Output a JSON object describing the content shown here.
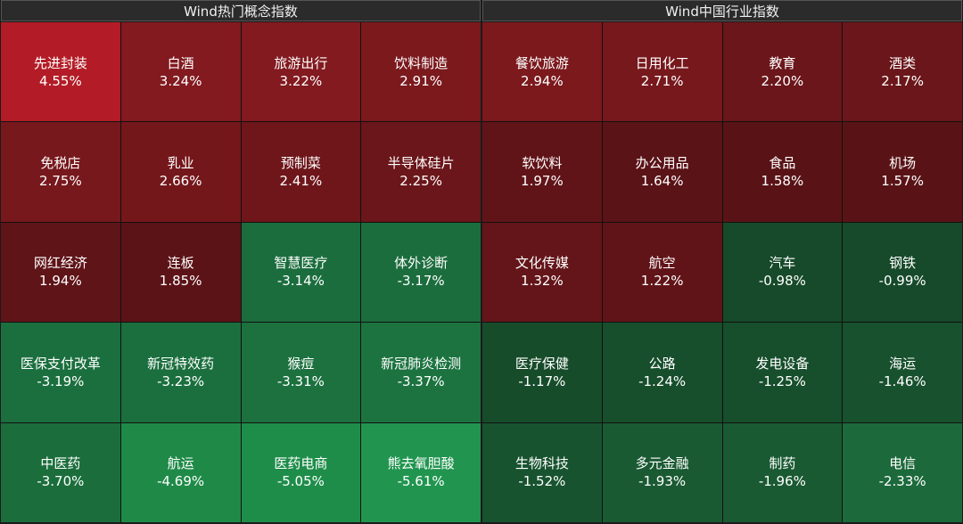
{
  "panels": [
    {
      "title": "Wind热门概念指数",
      "cells": [
        {
          "name": "先进封装",
          "pct": "4.55%",
          "color": "#b31c26"
        },
        {
          "name": "白酒",
          "pct": "3.24%",
          "color": "#821a1f"
        },
        {
          "name": "旅游出行",
          "pct": "3.22%",
          "color": "#821a1f"
        },
        {
          "name": "饮料制造",
          "pct": "2.91%",
          "color": "#7b191d"
        },
        {
          "name": "免税店",
          "pct": "2.75%",
          "color": "#77181c"
        },
        {
          "name": "乳业",
          "pct": "2.66%",
          "color": "#74171b"
        },
        {
          "name": "预制菜",
          "pct": "2.41%",
          "color": "#6e161a"
        },
        {
          "name": "半导体硅片",
          "pct": "2.25%",
          "color": "#6b161a"
        },
        {
          "name": "网红经济",
          "pct": "1.94%",
          "color": "#5f1418"
        },
        {
          "name": "连板",
          "pct": "1.85%",
          "color": "#5c1317"
        },
        {
          "name": "智慧医疗",
          "pct": "-3.14%",
          "color": "#1b6d3d"
        },
        {
          "name": "体外诊断",
          "pct": "-3.17%",
          "color": "#1b6d3d"
        },
        {
          "name": "医保支付改革",
          "pct": "-3.19%",
          "color": "#1b6f3e"
        },
        {
          "name": "新冠特效药",
          "pct": "-3.23%",
          "color": "#1b6f3e"
        },
        {
          "name": "猴痘",
          "pct": "-3.31%",
          "color": "#1c713f"
        },
        {
          "name": "新冠肺炎检测",
          "pct": "-3.37%",
          "color": "#1c7340"
        },
        {
          "name": "中医药",
          "pct": "-3.70%",
          "color": "#1b6e3c"
        },
        {
          "name": "航运",
          "pct": "-4.69%",
          "color": "#1f8a48"
        },
        {
          "name": "医药电商",
          "pct": "-5.05%",
          "color": "#1f8d4a"
        },
        {
          "name": "熊去氧胆酸",
          "pct": "-5.61%",
          "color": "#219550"
        }
      ]
    },
    {
      "title": "Wind中国行业指数",
      "cells": [
        {
          "name": "餐饮旅游",
          "pct": "2.94%",
          "color": "#7b191d"
        },
        {
          "name": "日用化工",
          "pct": "2.71%",
          "color": "#77181c"
        },
        {
          "name": "教育",
          "pct": "2.20%",
          "color": "#6b161a"
        },
        {
          "name": "酒类",
          "pct": "2.17%",
          "color": "#6b161a"
        },
        {
          "name": "软饮料",
          "pct": "1.97%",
          "color": "#611418"
        },
        {
          "name": "办公用品",
          "pct": "1.64%",
          "color": "#5a1317"
        },
        {
          "name": "食品",
          "pct": "1.58%",
          "color": "#591316"
        },
        {
          "name": "机场",
          "pct": "1.57%",
          "color": "#591316"
        },
        {
          "name": "文化传媒",
          "pct": "1.32%",
          "color": "#641519"
        },
        {
          "name": "航空",
          "pct": "1.22%",
          "color": "#611418"
        },
        {
          "name": "汽车",
          "pct": "-0.98%",
          "color": "#164a2a"
        },
        {
          "name": "钢铁",
          "pct": "-0.99%",
          "color": "#164a2a"
        },
        {
          "name": "医疗保健",
          "pct": "-1.17%",
          "color": "#174c2b"
        },
        {
          "name": "公路",
          "pct": "-1.24%",
          "color": "#174e2c"
        },
        {
          "name": "发电设备",
          "pct": "-1.25%",
          "color": "#174e2c"
        },
        {
          "name": "海运",
          "pct": "-1.46%",
          "color": "#18512e"
        },
        {
          "name": "生物科技",
          "pct": "-1.52%",
          "color": "#185330"
        },
        {
          "name": "多元金融",
          "pct": "-1.93%",
          "color": "#1a5a33"
        },
        {
          "name": "制药",
          "pct": "-1.96%",
          "color": "#1a5a33"
        },
        {
          "name": "电信",
          "pct": "-2.33%",
          "color": "#1c6a3b"
        }
      ]
    }
  ]
}
